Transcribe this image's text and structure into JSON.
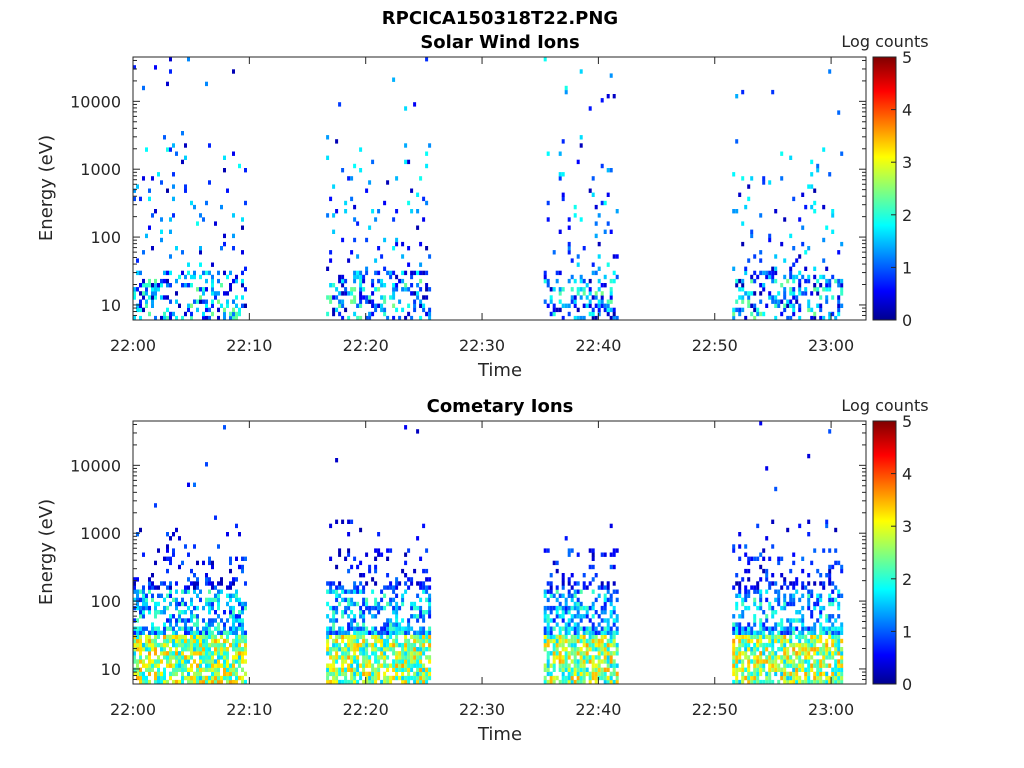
{
  "figure_title": "RPCICA150318T22.PNG",
  "chart_data": [
    {
      "type": "heatmap",
      "title": "Solar Wind Ions",
      "xlabel": "Time",
      "ylabel": "Energy (eV)",
      "x_ticks": [
        "22:00",
        "22:10",
        "22:20",
        "22:30",
        "22:40",
        "22:50",
        "23:00"
      ],
      "x_range_minutes": [
        0,
        63
      ],
      "y_scale": "log",
      "y_ticks": [
        {
          "value": 10,
          "label": "10"
        },
        {
          "value": 100,
          "label": "100"
        },
        {
          "value": 1000,
          "label": "1000"
        },
        {
          "value": 10000,
          "label": "10000"
        }
      ],
      "y_range": [
        6,
        45000
      ],
      "colorbar": {
        "label": "Log counts",
        "range": [
          0,
          5
        ],
        "ticks": [
          "0",
          "1",
          "2",
          "3",
          "4",
          "5"
        ],
        "colormap": "jet"
      },
      "bursts": [
        {
          "start_min": 0.0,
          "end_min": 9.6
        },
        {
          "start_min": 16.6,
          "end_min": 25.4
        },
        {
          "start_min": 35.3,
          "end_min": 41.5
        },
        {
          "start_min": 51.5,
          "end_min": 60.8
        }
      ],
      "peak_log_counts": 2.5,
      "note": "sparse speckle 10 eV - 10 keV, denser near 10-30 eV"
    },
    {
      "type": "heatmap",
      "title": "Cometary Ions",
      "xlabel": "Time",
      "ylabel": "Energy (eV)",
      "x_ticks": [
        "22:00",
        "22:10",
        "22:20",
        "22:30",
        "22:40",
        "22:50",
        "23:00"
      ],
      "x_range_minutes": [
        0,
        63
      ],
      "y_scale": "log",
      "y_ticks": [
        {
          "value": 10,
          "label": "10"
        },
        {
          "value": 100,
          "label": "100"
        },
        {
          "value": 1000,
          "label": "1000"
        },
        {
          "value": 10000,
          "label": "10000"
        }
      ],
      "y_range": [
        6,
        45000
      ],
      "colorbar": {
        "label": "Log counts",
        "range": [
          0,
          5
        ],
        "ticks": [
          "0",
          "1",
          "2",
          "3",
          "4",
          "5"
        ],
        "colormap": "jet"
      },
      "bursts": [
        {
          "start_min": 0.0,
          "end_min": 9.6
        },
        {
          "start_min": 16.6,
          "end_min": 25.4
        },
        {
          "start_min": 35.3,
          "end_min": 41.5
        },
        {
          "start_min": 51.5,
          "end_min": 60.8
        }
      ],
      "peak_log_counts": 3.6,
      "note": "dense stripes 8-300 eV, peaks near 15-25 eV"
    }
  ]
}
